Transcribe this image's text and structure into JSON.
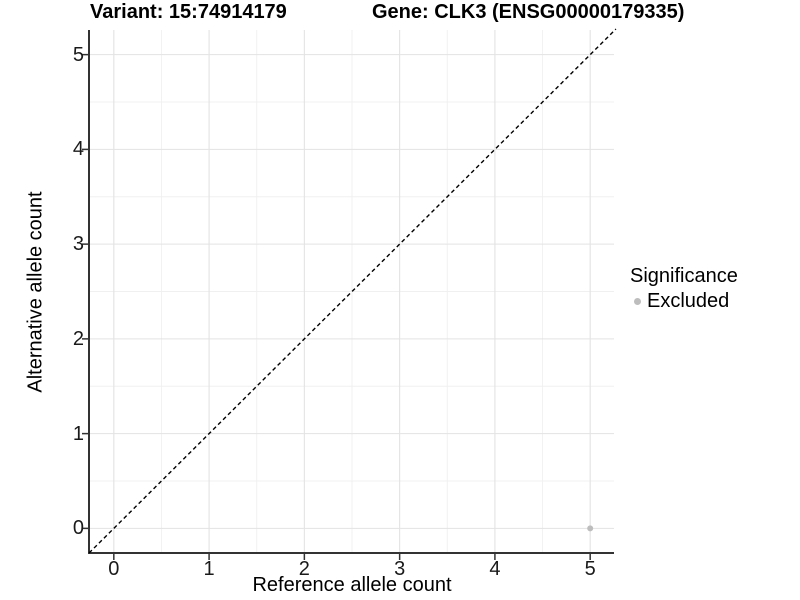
{
  "chart_data": {
    "type": "scatter",
    "title_left": "Variant: 15:74914179",
    "title_right": "Gene: CLK3 (ENSG00000179335)",
    "xlabel": "Reference allele count",
    "ylabel": "Alternative allele count",
    "xlim": [
      -0.25,
      5.25
    ],
    "ylim": [
      -0.26,
      5.26
    ],
    "x_ticks": [
      0,
      1,
      2,
      3,
      4,
      5
    ],
    "y_ticks": [
      0,
      1,
      2,
      3,
      4,
      5
    ],
    "minor_step": 0.5,
    "grid": "major+minor",
    "identity_line": {
      "style": "dashed",
      "from": [
        -0.26,
        -0.26
      ],
      "to": [
        5.27,
        5.27
      ]
    },
    "series": [
      {
        "name": "Excluded",
        "color": "#bdbdbd",
        "points": [
          {
            "x": 5,
            "y": 0
          }
        ]
      }
    ],
    "legend": {
      "title": "Significance",
      "position": "right",
      "entries": [
        {
          "label": "Excluded",
          "color": "#bdbdbd"
        }
      ]
    }
  },
  "colors": {
    "background": "#ffffff",
    "grid_major": "#e3e3e3",
    "grid_minor": "#f0f0f0",
    "axis_line": "#333333",
    "tick_mark": "#333333",
    "dashed_line": "#000000",
    "point": "#bdbdbd",
    "text": "#000000"
  }
}
